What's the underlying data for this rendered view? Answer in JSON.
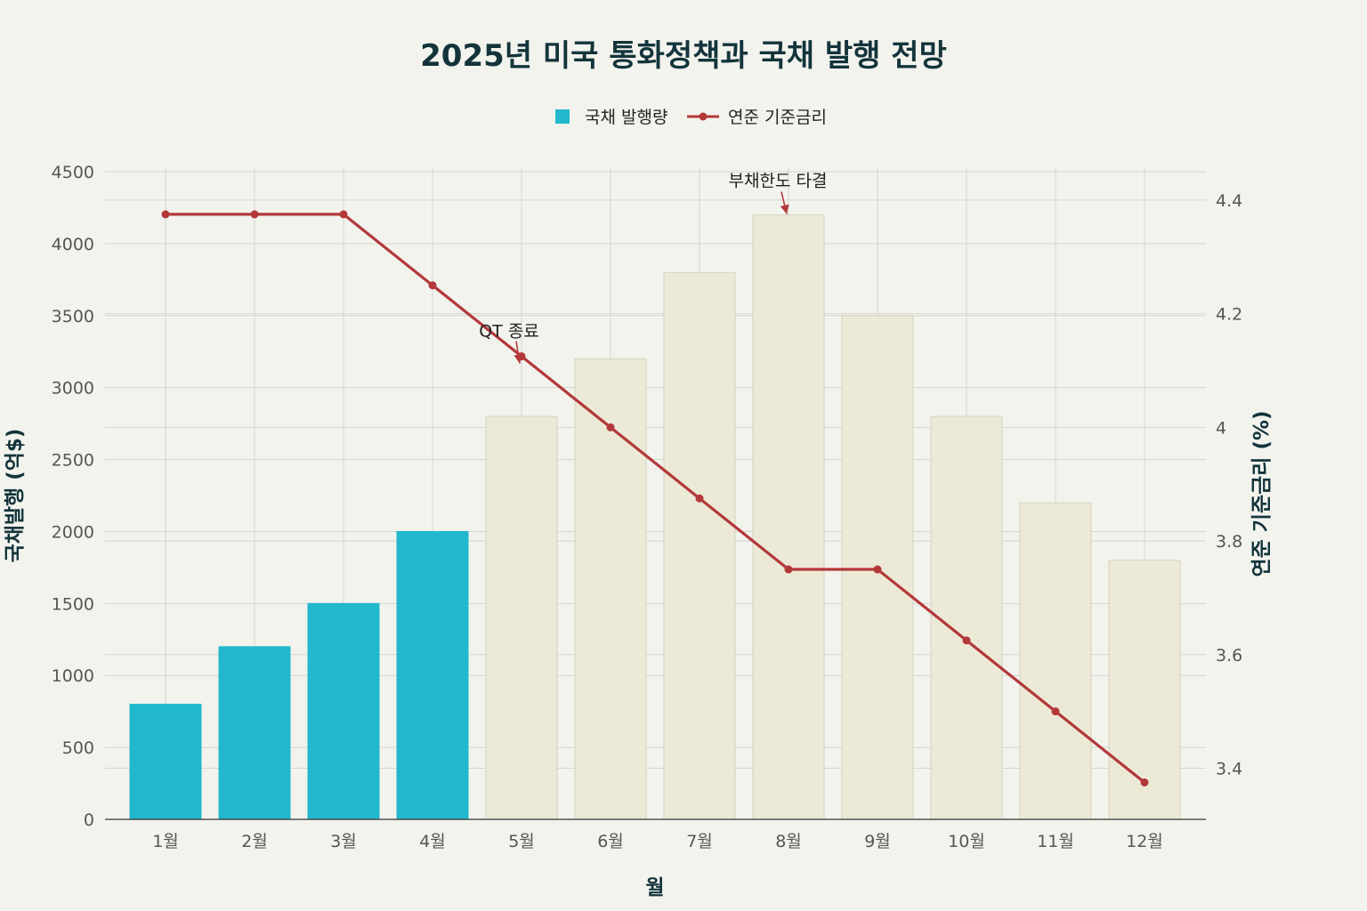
{
  "chart_data": {
    "type": "bar",
    "title": "2025년 미국 통화정책과 국채 발행 전망",
    "xlabel": "월",
    "ylabel": "국채발행 (억$)",
    "y2label": "연준 기준금리 (%)",
    "categories": [
      "1월",
      "2월",
      "3월",
      "4월",
      "5월",
      "6월",
      "7월",
      "8월",
      "9월",
      "10월",
      "11월",
      "12월"
    ],
    "ylim": [
      0,
      4500
    ],
    "yticks": [
      0,
      500,
      1000,
      1500,
      2000,
      2500,
      3000,
      3500,
      4000,
      4500
    ],
    "y2lim": [
      3.31,
      4.45
    ],
    "y2ticks": [
      3.4,
      3.6,
      3.8,
      4.0,
      4.2,
      4.4
    ],
    "y2tick_labels": [
      "3.4",
      "3.6",
      "3.8",
      "4",
      "4.2",
      "4.4"
    ],
    "legend_position": "top-center",
    "series": [
      {
        "name": "국채 발행량",
        "type": "bar",
        "axis": "left",
        "values": [
          800,
          1200,
          1500,
          2000,
          2800,
          3200,
          3800,
          4200,
          3500,
          2800,
          2200,
          1800
        ],
        "highlight": [
          true,
          true,
          true,
          true,
          false,
          false,
          false,
          false,
          false,
          false,
          false,
          false
        ]
      },
      {
        "name": "연준 기준금리",
        "type": "line",
        "axis": "right",
        "values": [
          4.375,
          4.375,
          4.375,
          4.25,
          4.125,
          4.0,
          3.875,
          3.75,
          3.75,
          3.625,
          3.5,
          3.375
        ]
      }
    ],
    "annotations": [
      {
        "text": "QT 종료",
        "category": "5월",
        "series": "연준 기준금리"
      },
      {
        "text": "부채한도 타결",
        "category": "8월",
        "series": "국채 발행량"
      }
    ]
  },
  "colors": {
    "background": "#f3f3ee",
    "bar_highlight": "#21b8cd",
    "bar_normal": "#ecead6",
    "bar_normal_stroke": "#d4d2c0",
    "line": "#b3383a",
    "grid": "#d5d5d0",
    "axis": "#333333",
    "title": "#13343b"
  }
}
